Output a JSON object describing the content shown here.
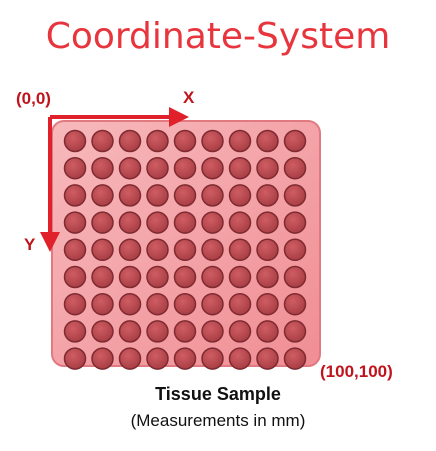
{
  "title": "Coordinate-System",
  "origin_label": "(0,0)",
  "x_axis_label": "X",
  "y_axis_label": "Y",
  "corner_label": "(100,100)",
  "caption_title": "Tissue Sample",
  "caption_subtitle": "(Measurements in mm)",
  "grid": {
    "rows": 9,
    "cols": 9
  },
  "colors": {
    "title": "#e8353d",
    "labels": "#c0141c",
    "arrows": "#e0202a",
    "sample_fill": "#f4a4a8",
    "sample_border": "#e07a80",
    "well_fill": "#b8484e",
    "well_border": "#7e2a30"
  }
}
